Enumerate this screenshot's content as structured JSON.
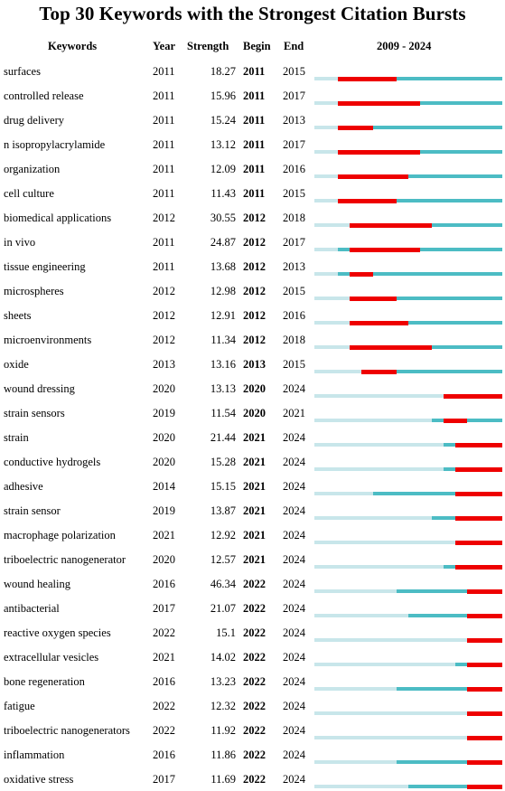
{
  "chart_data": {
    "type": "table",
    "title": "Top 30 Keywords with the Strongest Citation Bursts",
    "columns": [
      "Keywords",
      "Year",
      "Strength",
      "Begin",
      "End",
      "2009 - 2024"
    ],
    "timeline": {
      "start": 2009,
      "end": 2024
    },
    "colors": {
      "burst": "#ee0000",
      "active": "#4cbcc4",
      "inactive": "#c8e6ea"
    },
    "rows": [
      {
        "keyword": "surfaces",
        "year": 2011,
        "strength": 18.27,
        "begin": 2011,
        "end": 2015
      },
      {
        "keyword": "controlled release",
        "year": 2011,
        "strength": 15.96,
        "begin": 2011,
        "end": 2017
      },
      {
        "keyword": "drug delivery",
        "year": 2011,
        "strength": 15.24,
        "begin": 2011,
        "end": 2013
      },
      {
        "keyword": "n isopropylacrylamide",
        "year": 2011,
        "strength": 13.12,
        "begin": 2011,
        "end": 2017
      },
      {
        "keyword": "organization",
        "year": 2011,
        "strength": 12.09,
        "begin": 2011,
        "end": 2016
      },
      {
        "keyword": "cell culture",
        "year": 2011,
        "strength": 11.43,
        "begin": 2011,
        "end": 2015
      },
      {
        "keyword": "biomedical applications",
        "year": 2012,
        "strength": 30.55,
        "begin": 2012,
        "end": 2018
      },
      {
        "keyword": "in vivo",
        "year": 2011,
        "strength": 24.87,
        "begin": 2012,
        "end": 2017
      },
      {
        "keyword": "tissue engineering",
        "year": 2011,
        "strength": 13.68,
        "begin": 2012,
        "end": 2013
      },
      {
        "keyword": "microspheres",
        "year": 2012,
        "strength": 12.98,
        "begin": 2012,
        "end": 2015
      },
      {
        "keyword": "sheets",
        "year": 2012,
        "strength": 12.91,
        "begin": 2012,
        "end": 2016
      },
      {
        "keyword": "microenvironments",
        "year": 2012,
        "strength": 11.34,
        "begin": 2012,
        "end": 2018
      },
      {
        "keyword": "oxide",
        "year": 2013,
        "strength": 13.16,
        "begin": 2013,
        "end": 2015
      },
      {
        "keyword": "wound dressing",
        "year": 2020,
        "strength": 13.13,
        "begin": 2020,
        "end": 2024
      },
      {
        "keyword": "strain sensors",
        "year": 2019,
        "strength": 11.54,
        "begin": 2020,
        "end": 2021
      },
      {
        "keyword": "strain",
        "year": 2020,
        "strength": 21.44,
        "begin": 2021,
        "end": 2024
      },
      {
        "keyword": "conductive hydrogels",
        "year": 2020,
        "strength": 15.28,
        "begin": 2021,
        "end": 2024
      },
      {
        "keyword": "adhesive",
        "year": 2014,
        "strength": 15.15,
        "begin": 2021,
        "end": 2024
      },
      {
        "keyword": "strain sensor",
        "year": 2019,
        "strength": 13.87,
        "begin": 2021,
        "end": 2024
      },
      {
        "keyword": "macrophage polarization",
        "year": 2021,
        "strength": 12.92,
        "begin": 2021,
        "end": 2024
      },
      {
        "keyword": "triboelectric nanogenerator",
        "year": 2020,
        "strength": 12.57,
        "begin": 2021,
        "end": 2024
      },
      {
        "keyword": "wound healing",
        "year": 2016,
        "strength": 46.34,
        "begin": 2022,
        "end": 2024
      },
      {
        "keyword": "antibacterial",
        "year": 2017,
        "strength": 21.07,
        "begin": 2022,
        "end": 2024
      },
      {
        "keyword": "reactive oxygen species",
        "year": 2022,
        "strength": 15.1,
        "begin": 2022,
        "end": 2024
      },
      {
        "keyword": "extracellular vesicles",
        "year": 2021,
        "strength": 14.02,
        "begin": 2022,
        "end": 2024
      },
      {
        "keyword": "bone regeneration",
        "year": 2016,
        "strength": 13.23,
        "begin": 2022,
        "end": 2024
      },
      {
        "keyword": "fatigue",
        "year": 2022,
        "strength": 12.32,
        "begin": 2022,
        "end": 2024
      },
      {
        "keyword": "triboelectric nanogenerators",
        "year": 2022,
        "strength": 11.92,
        "begin": 2022,
        "end": 2024
      },
      {
        "keyword": "inflammation",
        "year": 2016,
        "strength": 11.86,
        "begin": 2022,
        "end": 2024
      },
      {
        "keyword": "oxidative stress",
        "year": 2017,
        "strength": 11.69,
        "begin": 2022,
        "end": 2024
      }
    ]
  }
}
